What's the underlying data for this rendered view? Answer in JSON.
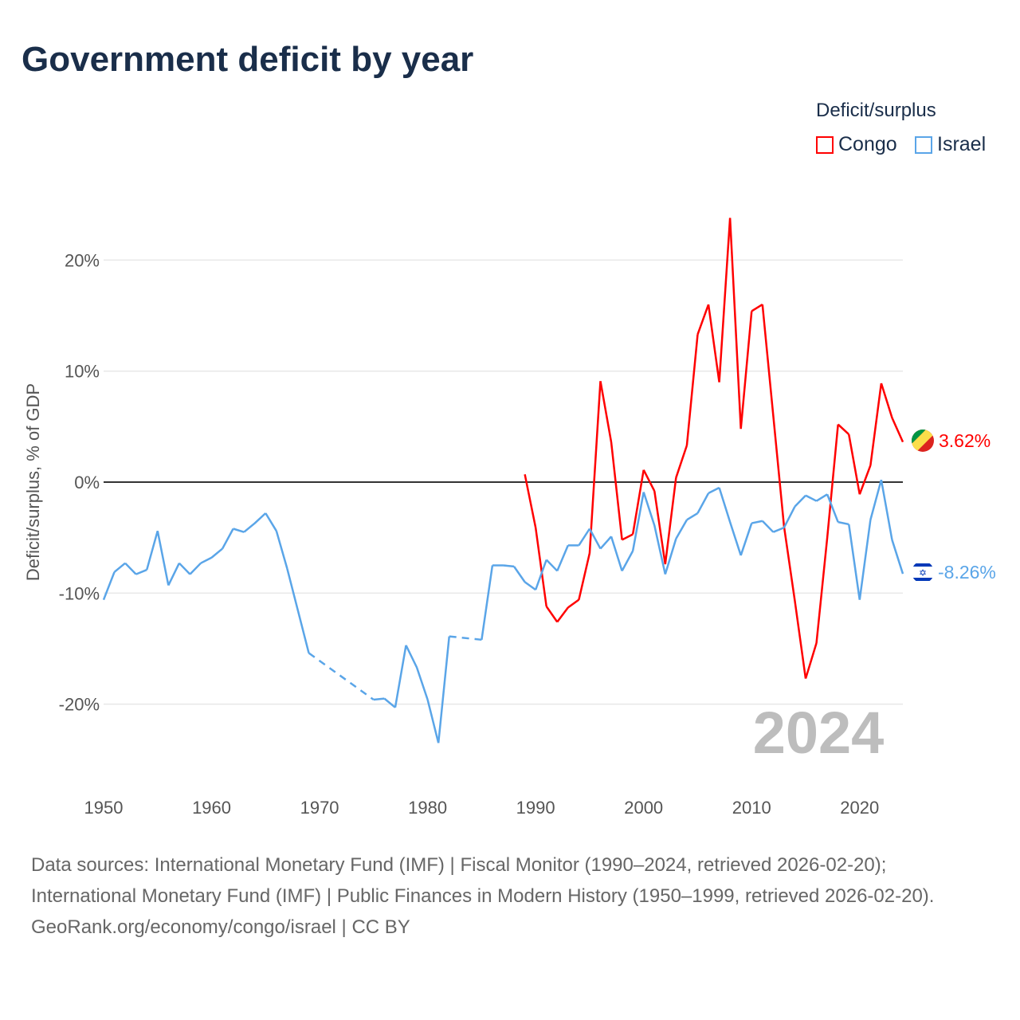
{
  "title": "Government deficit by year",
  "legend": {
    "title": "Deficit/surplus",
    "items": [
      {
        "name": "Congo",
        "color": "#ff0000"
      },
      {
        "name": "Israel",
        "color": "#5aa5e8"
      }
    ]
  },
  "year_watermark": "2024",
  "end_labels": {
    "congo": "3.62%",
    "israel": "-8.26%"
  },
  "flags": {
    "congo": "congo-flag-icon",
    "israel": "israel-flag-icon"
  },
  "source": {
    "line1": "Data sources: International Monetary Fund (IMF) | Fiscal Monitor (1990–2024, retrieved 2026-02-20); International Monetary Fund (IMF) | Public Finances in Modern History (1950–1999, retrieved 2026-02-20).",
    "line2": "GeoRank.org/economy/congo/israel | CC BY"
  },
  "chart_data": {
    "type": "line",
    "title": "Government deficit by year",
    "xlabel": "",
    "ylabel": "Deficit/surplus, % of GDP",
    "xlim": [
      1950,
      2024
    ],
    "ylim": [
      -25,
      25
    ],
    "xticks": [
      1950,
      1960,
      1970,
      1980,
      1990,
      2000,
      2010,
      2020
    ],
    "yticks": [
      {
        "v": 20,
        "label": "20%"
      },
      {
        "v": 10,
        "label": "10%"
      },
      {
        "v": 0,
        "label": "0%"
      },
      {
        "v": -10,
        "label": "-10%"
      },
      {
        "v": -20,
        "label": "-20%"
      }
    ],
    "grid": true,
    "legend_position": "top-right",
    "series": [
      {
        "name": "Congo",
        "color": "#ff0000",
        "start": 1989,
        "values": [
          0.7,
          -4.1,
          -11.2,
          -12.6,
          -11.3,
          -10.6,
          -6.4,
          9.1,
          3.6,
          -5.2,
          -4.7,
          1.1,
          -0.8,
          -7.4,
          0.4,
          3.3,
          13.3,
          16.0,
          9.0,
          23.8,
          4.8,
          15.4,
          16.0,
          6.0,
          -4.0,
          -10.7,
          -17.7,
          -14.5,
          -5.0,
          5.2,
          4.3,
          -1.1,
          1.5,
          8.9,
          5.8,
          3.62
        ]
      },
      {
        "name": "Israel",
        "color": "#5aa5e8",
        "start": 1950,
        "values": [
          -10.6,
          -8.1,
          -7.3,
          -8.3,
          -7.9,
          -4.4,
          -9.3,
          -7.3,
          -8.3,
          -7.3,
          -6.8,
          -6.0,
          -4.2,
          -4.5,
          -3.7,
          -2.8,
          -4.4,
          -7.8,
          -11.6,
          -15.4,
          null,
          null,
          null,
          null,
          null,
          -19.6,
          -19.5,
          -20.3,
          -14.7,
          -16.7,
          -19.6,
          -23.5,
          -13.9,
          null,
          null,
          -14.2,
          -7.5,
          -7.5,
          -7.6,
          -9.0,
          -9.7,
          -7.0,
          -8.0,
          -5.7,
          -5.7,
          -4.2,
          -6.0,
          -4.9,
          -8.0,
          -6.2,
          -0.9,
          -3.9,
          -8.3,
          -5.1,
          -3.4,
          -2.8,
          -1.0,
          -0.5,
          -3.6,
          -6.6,
          -3.7,
          -3.5,
          -4.5,
          -4.1,
          -2.2,
          -1.2,
          -1.7,
          -1.1,
          -3.6,
          -3.8,
          -10.6,
          -3.4,
          0.2,
          -5.2,
          -8.26
        ]
      }
    ]
  }
}
